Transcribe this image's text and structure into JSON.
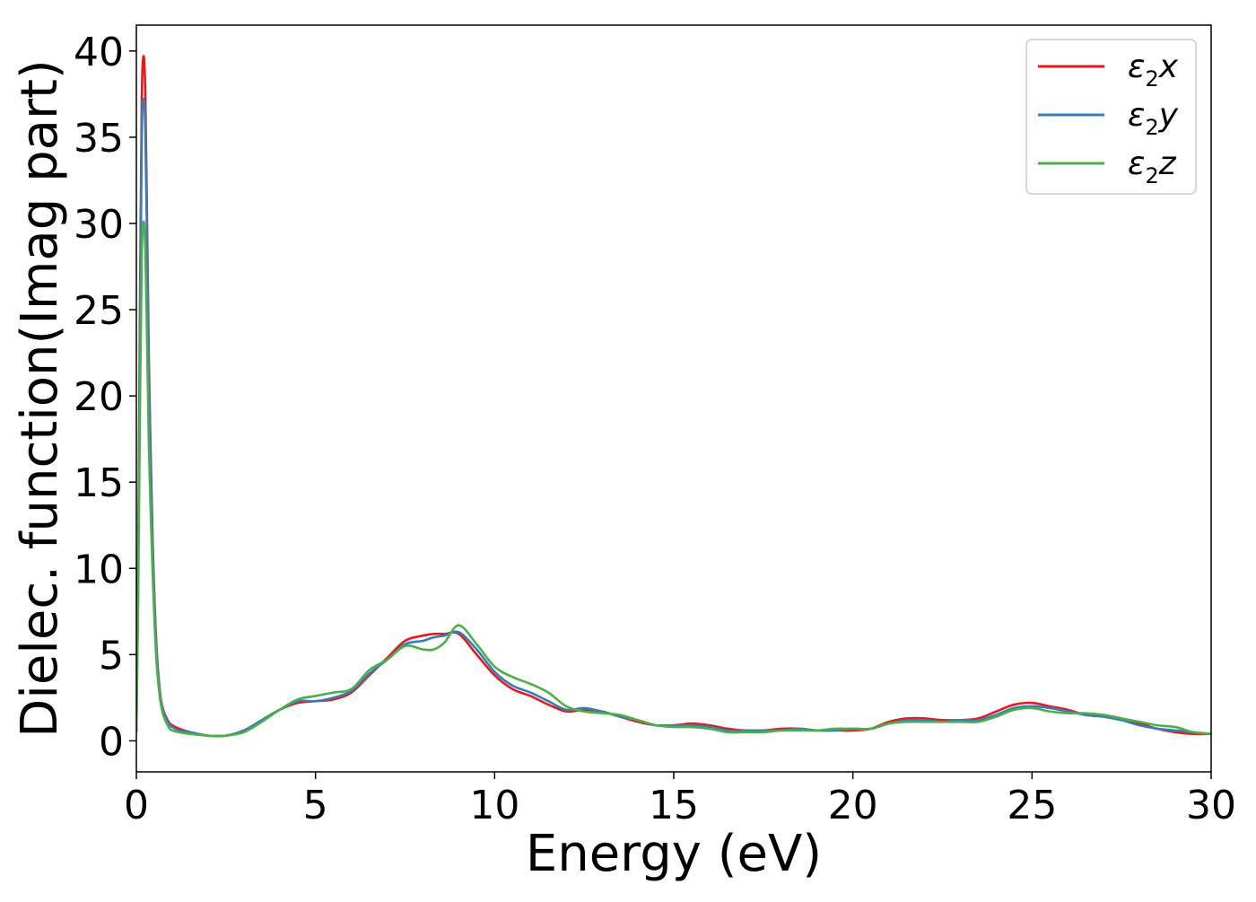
{
  "chart_data": {
    "type": "line",
    "title": "",
    "xlabel": "Energy (eV)",
    "ylabel": "Dielec. function(Imag part)",
    "xlim": [
      0,
      30
    ],
    "ylim": [
      -1.8,
      41.5
    ],
    "xticks": [
      0,
      5,
      10,
      15,
      20,
      25,
      30
    ],
    "xtick_labels": [
      "0",
      "5",
      "10",
      "15",
      "20",
      "25",
      "30"
    ],
    "yticks": [
      0,
      5,
      10,
      15,
      20,
      25,
      30,
      35,
      40
    ],
    "ytick_labels": [
      "0",
      "5",
      "10",
      "15",
      "20",
      "25",
      "30",
      "35",
      "40"
    ],
    "grid": false,
    "legend_position": "top-right",
    "series": [
      {
        "name": "ε2x",
        "color": "#e41a1c",
        "x": [
          0.0,
          0.05,
          0.1,
          0.15,
          0.2,
          0.25,
          0.3,
          0.35,
          0.45,
          0.55,
          0.65,
          0.75,
          0.9,
          1.0,
          1.2,
          1.5,
          2.0,
          2.5,
          3.0,
          3.5,
          4.0,
          4.5,
          5.0,
          5.5,
          6.0,
          6.5,
          7.0,
          7.5,
          8.0,
          8.3,
          8.6,
          9.0,
          9.5,
          10.0,
          10.5,
          11.0,
          11.5,
          12.0,
          12.5,
          13.0,
          13.5,
          14.0,
          14.5,
          15.0,
          15.5,
          16.0,
          16.5,
          17.0,
          17.5,
          18.0,
          18.5,
          19.0,
          19.5,
          20.0,
          20.5,
          21.0,
          21.5,
          22.0,
          22.5,
          23.0,
          23.5,
          24.0,
          24.5,
          25.0,
          25.5,
          26.0,
          26.5,
          27.0,
          27.5,
          28.0,
          28.5,
          29.0,
          29.5,
          30.0
        ],
        "values": [
          0.5,
          10.0,
          25.0,
          37.0,
          39.7,
          37.5,
          30.0,
          22.0,
          12.0,
          6.0,
          3.0,
          1.8,
          1.1,
          0.9,
          0.7,
          0.5,
          0.3,
          0.3,
          0.6,
          1.2,
          1.8,
          2.2,
          2.3,
          2.4,
          2.8,
          3.8,
          4.8,
          5.8,
          6.1,
          6.2,
          6.2,
          6.2,
          5.0,
          3.8,
          3.0,
          2.6,
          2.1,
          1.7,
          1.8,
          1.7,
          1.4,
          1.1,
          0.9,
          0.9,
          1.0,
          0.9,
          0.7,
          0.6,
          0.6,
          0.7,
          0.7,
          0.6,
          0.6,
          0.6,
          0.7,
          1.1,
          1.3,
          1.3,
          1.2,
          1.2,
          1.3,
          1.7,
          2.1,
          2.2,
          2.0,
          1.8,
          1.5,
          1.4,
          1.2,
          1.0,
          0.7,
          0.5,
          0.4,
          0.4
        ]
      },
      {
        "name": "ε2y",
        "color": "#377eb8",
        "x": [
          0.0,
          0.05,
          0.1,
          0.15,
          0.2,
          0.25,
          0.3,
          0.35,
          0.45,
          0.55,
          0.65,
          0.75,
          0.9,
          1.0,
          1.2,
          1.5,
          2.0,
          2.5,
          3.0,
          3.5,
          4.0,
          4.5,
          5.0,
          5.5,
          6.0,
          6.5,
          7.0,
          7.5,
          8.0,
          8.3,
          8.6,
          9.0,
          9.5,
          10.0,
          10.5,
          11.0,
          11.5,
          12.0,
          12.5,
          13.0,
          13.5,
          14.0,
          14.5,
          15.0,
          15.5,
          16.0,
          16.5,
          17.0,
          17.5,
          18.0,
          18.5,
          19.0,
          19.5,
          20.0,
          20.5,
          21.0,
          21.5,
          22.0,
          22.5,
          23.0,
          23.5,
          24.0,
          24.5,
          25.0,
          25.5,
          26.0,
          26.5,
          27.0,
          27.5,
          28.0,
          28.5,
          29.0,
          29.5,
          30.0
        ],
        "values": [
          0.5,
          9.0,
          23.0,
          35.0,
          37.2,
          35.5,
          28.5,
          21.0,
          11.5,
          5.8,
          2.9,
          1.7,
          1.0,
          0.8,
          0.6,
          0.5,
          0.3,
          0.3,
          0.6,
          1.2,
          1.8,
          2.3,
          2.3,
          2.5,
          2.9,
          3.9,
          4.7,
          5.6,
          5.8,
          6.0,
          6.1,
          6.3,
          5.3,
          4.0,
          3.2,
          2.8,
          2.3,
          1.8,
          1.9,
          1.7,
          1.4,
          1.2,
          0.9,
          0.9,
          0.9,
          0.8,
          0.6,
          0.6,
          0.6,
          0.6,
          0.7,
          0.6,
          0.6,
          0.7,
          0.7,
          1.0,
          1.2,
          1.2,
          1.1,
          1.2,
          1.2,
          1.5,
          1.9,
          2.0,
          1.9,
          1.7,
          1.5,
          1.4,
          1.2,
          0.9,
          0.7,
          0.6,
          0.5,
          0.4
        ]
      },
      {
        "name": "ε2z",
        "color": "#4daf4a",
        "x": [
          0.0,
          0.05,
          0.1,
          0.15,
          0.2,
          0.25,
          0.3,
          0.35,
          0.45,
          0.55,
          0.65,
          0.75,
          0.9,
          1.0,
          1.2,
          1.5,
          2.0,
          2.5,
          3.0,
          3.5,
          4.0,
          4.5,
          5.0,
          5.5,
          6.0,
          6.5,
          7.0,
          7.5,
          8.0,
          8.3,
          8.6,
          9.0,
          9.5,
          10.0,
          10.5,
          11.0,
          11.5,
          12.0,
          12.5,
          13.0,
          13.5,
          14.0,
          14.5,
          15.0,
          15.5,
          16.0,
          16.5,
          17.0,
          17.5,
          18.0,
          18.5,
          19.0,
          19.5,
          20.0,
          20.5,
          21.0,
          21.5,
          22.0,
          22.5,
          23.0,
          23.5,
          24.0,
          24.5,
          25.0,
          25.5,
          26.0,
          26.5,
          27.0,
          27.5,
          28.0,
          28.5,
          29.0,
          29.5,
          30.0
        ],
        "values": [
          0.5,
          8.0,
          19.0,
          28.0,
          30.1,
          28.5,
          23.0,
          17.0,
          10.0,
          5.0,
          2.6,
          1.5,
          0.8,
          0.6,
          0.5,
          0.4,
          0.3,
          0.3,
          0.5,
          1.1,
          1.8,
          2.4,
          2.6,
          2.8,
          3.0,
          4.1,
          4.7,
          5.5,
          5.3,
          5.3,
          5.7,
          6.7,
          5.6,
          4.3,
          3.7,
          3.3,
          2.8,
          2.0,
          1.7,
          1.6,
          1.5,
          1.2,
          0.9,
          0.8,
          0.8,
          0.7,
          0.5,
          0.5,
          0.5,
          0.6,
          0.6,
          0.6,
          0.7,
          0.7,
          0.7,
          1.0,
          1.1,
          1.1,
          1.1,
          1.1,
          1.1,
          1.4,
          1.8,
          1.9,
          1.7,
          1.6,
          1.6,
          1.5,
          1.3,
          1.1,
          0.9,
          0.8,
          0.5,
          0.4
        ]
      }
    ]
  }
}
